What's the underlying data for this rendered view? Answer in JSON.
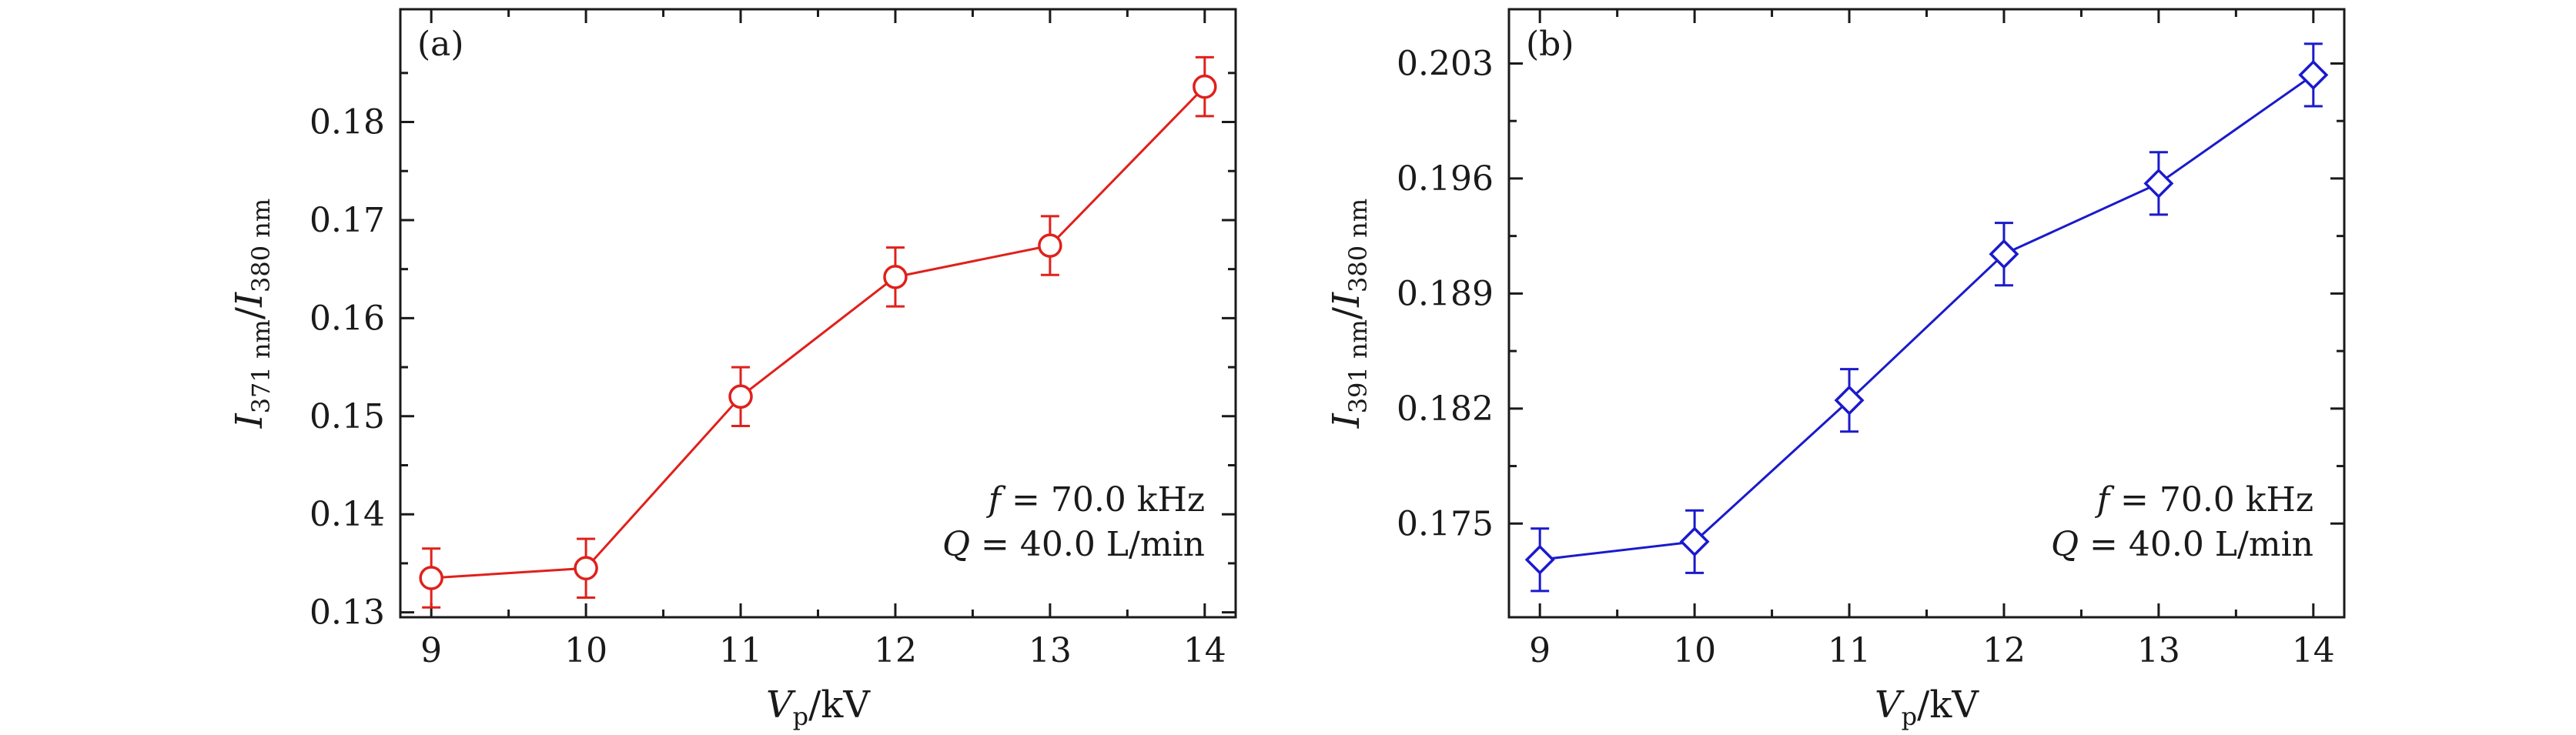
{
  "chart_data": [
    {
      "type": "line",
      "panel_label": "(a)",
      "color": "#e0201b",
      "marker": "circle",
      "x": [
        9,
        10,
        11,
        12,
        13,
        14
      ],
      "y": [
        0.1335,
        0.1345,
        0.152,
        0.1642,
        0.1674,
        0.1836
      ],
      "y_err": [
        0.003,
        0.003,
        0.003,
        0.003,
        0.003,
        0.003
      ],
      "xlim": [
        8.8,
        14.2
      ],
      "ylim": [
        0.1295,
        0.1915
      ],
      "xticks": [
        9,
        10,
        11,
        12,
        13,
        14
      ],
      "xtick_labels": [
        "9",
        "10",
        "11",
        "12",
        "13",
        "14"
      ],
      "yticks": [
        0.13,
        0.14,
        0.15,
        0.16,
        0.17,
        0.18
      ],
      "ytick_labels": [
        "0.13",
        "0.14",
        "0.15",
        "0.16",
        "0.17",
        "0.18"
      ],
      "xlabel": {
        "main": "V",
        "sub": "p",
        "rest": "/kV"
      },
      "ylabel": {
        "i1": "I",
        "s1": "371 nm",
        "slash": "/",
        "i2": "I",
        "s2": "380 nm"
      },
      "annotations": [
        {
          "italic": "f",
          "text": " = 70.0 kHz"
        },
        {
          "italic": "Q",
          "text": " = 40.0 L/min"
        }
      ]
    },
    {
      "type": "line",
      "panel_label": "(b)",
      "color": "#1a1acc",
      "marker": "diamond",
      "x": [
        9,
        10,
        11,
        12,
        13,
        14
      ],
      "y": [
        0.1728,
        0.1739,
        0.1825,
        0.1914,
        0.1957,
        0.2023
      ],
      "y_err": [
        0.0019,
        0.0019,
        0.0019,
        0.0019,
        0.0019,
        0.0019
      ],
      "xlim": [
        8.8,
        14.2
      ],
      "ylim": [
        0.1693,
        0.2063
      ],
      "xticks": [
        9,
        10,
        11,
        12,
        13,
        14
      ],
      "xtick_labels": [
        "9",
        "10",
        "11",
        "12",
        "13",
        "14"
      ],
      "yticks": [
        0.175,
        0.182,
        0.189,
        0.196,
        0.203
      ],
      "ytick_labels": [
        "0.175",
        "0.182",
        "0.189",
        "0.196",
        "0.203"
      ],
      "xlabel": {
        "main": "V",
        "sub": "p",
        "rest": "/kV"
      },
      "ylabel": {
        "i1": "I",
        "s1": "391 nm",
        "slash": "/",
        "i2": "I",
        "s2": "380 nm"
      },
      "annotations": [
        {
          "italic": "f",
          "text": " = 70.0 kHz"
        },
        {
          "italic": "Q",
          "text": " = 40.0 L/min"
        }
      ]
    }
  ]
}
